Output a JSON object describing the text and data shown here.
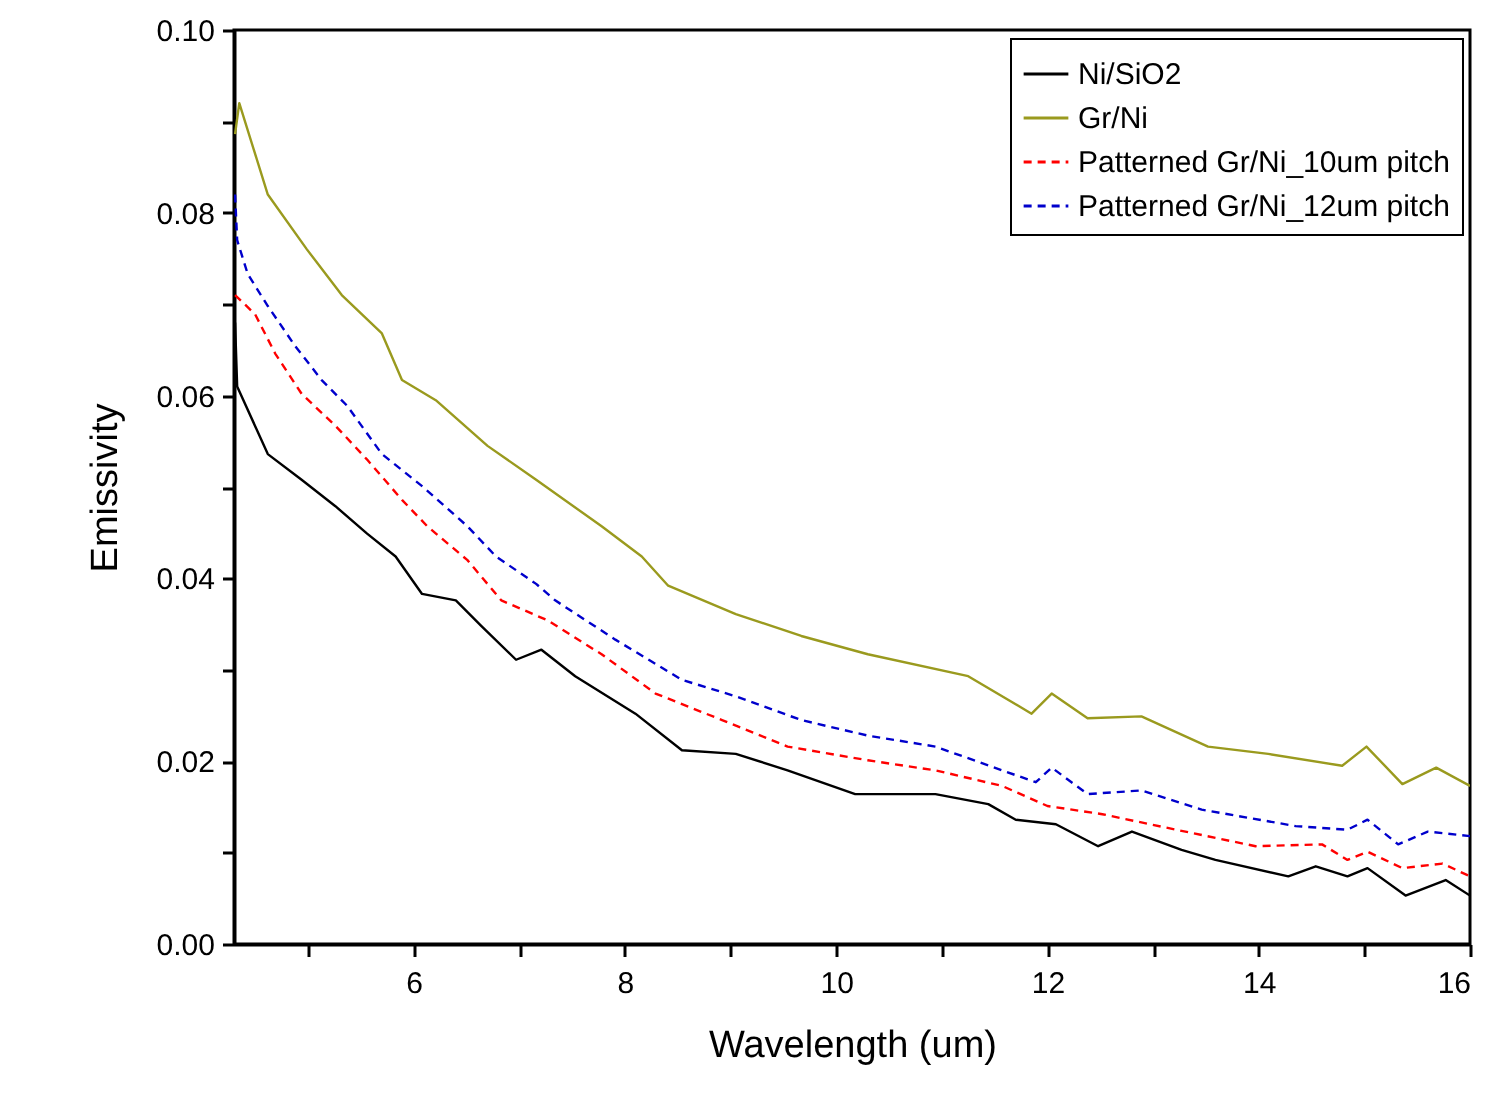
{
  "chart_data": {
    "type": "line",
    "xlabel": "Wavelength (um)",
    "ylabel": "Emissivity",
    "xlim": [
      4.3,
      16
    ],
    "ylim": [
      0,
      0.1
    ],
    "xticks": [
      {
        "value": 5,
        "label": null
      },
      6,
      {
        "value": 7,
        "label": null
      },
      8,
      {
        "value": 9,
        "label": null
      },
      10,
      {
        "value": 11,
        "label": null
      },
      12,
      {
        "value": 13,
        "label": null
      },
      14,
      {
        "value": 15,
        "label": null
      },
      16
    ],
    "yticks": [
      {
        "value": 0,
        "label": "0.00"
      },
      {
        "value": 0.01,
        "label": null
      },
      {
        "value": 0.02,
        "label": "0.02"
      },
      {
        "value": 0.03,
        "label": null
      },
      {
        "value": 0.04,
        "label": "0.04"
      },
      {
        "value": 0.05,
        "label": null
      },
      {
        "value": 0.06,
        "label": "0.06"
      },
      {
        "value": 0.07,
        "label": null
      },
      {
        "value": 0.08,
        "label": "0.08"
      },
      {
        "value": 0.09,
        "label": null
      },
      {
        "value": 0.1,
        "label": "0.10"
      }
    ],
    "legend": "top right",
    "grid": false,
    "series": [
      {
        "name": "Ni/SiO2",
        "color": "#000000",
        "line_style": "solid",
        "x": [
          4.31,
          4.33,
          4.62,
          4.94,
          5.26,
          5.56,
          5.83,
          6.08,
          6.4,
          6.64,
          6.97,
          7.21,
          7.53,
          8.1,
          8.54,
          9.05,
          9.54,
          10.18,
          10.94,
          11.44,
          11.7,
          12.08,
          12.48,
          12.8,
          13.27,
          13.59,
          14.28,
          14.54,
          14.84,
          15.03,
          15.39,
          15.77,
          16.0
        ],
        "values": [
          0.068,
          0.061,
          0.0536,
          0.0508,
          0.0479,
          0.0449,
          0.0424,
          0.0383,
          0.0376,
          0.0348,
          0.0311,
          0.0322,
          0.0293,
          0.0252,
          0.0212,
          0.0208,
          0.019,
          0.0164,
          0.0164,
          0.0153,
          0.0136,
          0.0131,
          0.0107,
          0.0123,
          0.0103,
          0.0092,
          0.0074,
          0.0085,
          0.0074,
          0.0083,
          0.0053,
          0.007,
          0.0053
        ]
      },
      {
        "name": "Gr/Ni",
        "color": "#9a9a1e",
        "line_style": "solid",
        "x": [
          4.31,
          4.35,
          4.62,
          4.99,
          5.32,
          5.7,
          5.89,
          6.21,
          6.7,
          7.16,
          7.78,
          8.16,
          8.41,
          9.05,
          9.67,
          10.3,
          11.25,
          11.85,
          12.04,
          12.38,
          12.89,
          13.52,
          14.09,
          14.79,
          15.02,
          15.36,
          15.68,
          16.0
        ],
        "values": [
          0.0886,
          0.092,
          0.082,
          0.076,
          0.071,
          0.0668,
          0.0617,
          0.0595,
          0.0545,
          0.0508,
          0.0457,
          0.0424,
          0.0392,
          0.0361,
          0.0337,
          0.0317,
          0.0293,
          0.0252,
          0.0274,
          0.0247,
          0.0249,
          0.0216,
          0.0208,
          0.0195,
          0.0216,
          0.0175,
          0.0193,
          0.0173
        ]
      },
      {
        "name": "Patterned Gr/Ni_10um pitch",
        "color": "#ff0000",
        "line_style": "dashed",
        "x": [
          4.31,
          4.5,
          4.69,
          4.94,
          5.26,
          5.56,
          5.89,
          6.13,
          6.51,
          6.83,
          7.27,
          7.78,
          8.29,
          8.92,
          9.54,
          10.3,
          10.94,
          11.57,
          12.0,
          12.52,
          13.22,
          13.97,
          14.6,
          14.84,
          15.03,
          15.36,
          15.74,
          16.0
        ],
        "values": [
          0.071,
          0.0689,
          0.0646,
          0.0602,
          0.0567,
          0.053,
          0.0486,
          0.0457,
          0.042,
          0.0376,
          0.0354,
          0.0317,
          0.0274,
          0.0245,
          0.0216,
          0.0201,
          0.019,
          0.0173,
          0.0151,
          0.0142,
          0.0125,
          0.0107,
          0.0109,
          0.0092,
          0.0101,
          0.0083,
          0.0088,
          0.0074
        ]
      },
      {
        "name": "Patterned Gr/Ni_12um pitch",
        "color": "#0000cc",
        "line_style": "dashed",
        "x": [
          4.31,
          4.33,
          4.43,
          4.62,
          4.88,
          5.13,
          5.37,
          5.7,
          6.08,
          6.51,
          6.78,
          7.16,
          7.34,
          7.91,
          8.54,
          9.05,
          9.67,
          10.3,
          10.94,
          11.57,
          11.89,
          12.04,
          12.38,
          12.89,
          13.46,
          14.35,
          14.84,
          15.03,
          15.32,
          15.6,
          16.0
        ],
        "values": [
          0.082,
          0.077,
          0.0733,
          0.0698,
          0.0654,
          0.0617,
          0.0589,
          0.0536,
          0.0501,
          0.0457,
          0.0424,
          0.0394,
          0.0376,
          0.0333,
          0.0289,
          0.0271,
          0.0245,
          0.0228,
          0.0216,
          0.019,
          0.0177,
          0.0193,
          0.0164,
          0.0168,
          0.0147,
          0.0129,
          0.0125,
          0.0136,
          0.0109,
          0.0123,
          0.0118
        ]
      }
    ]
  }
}
